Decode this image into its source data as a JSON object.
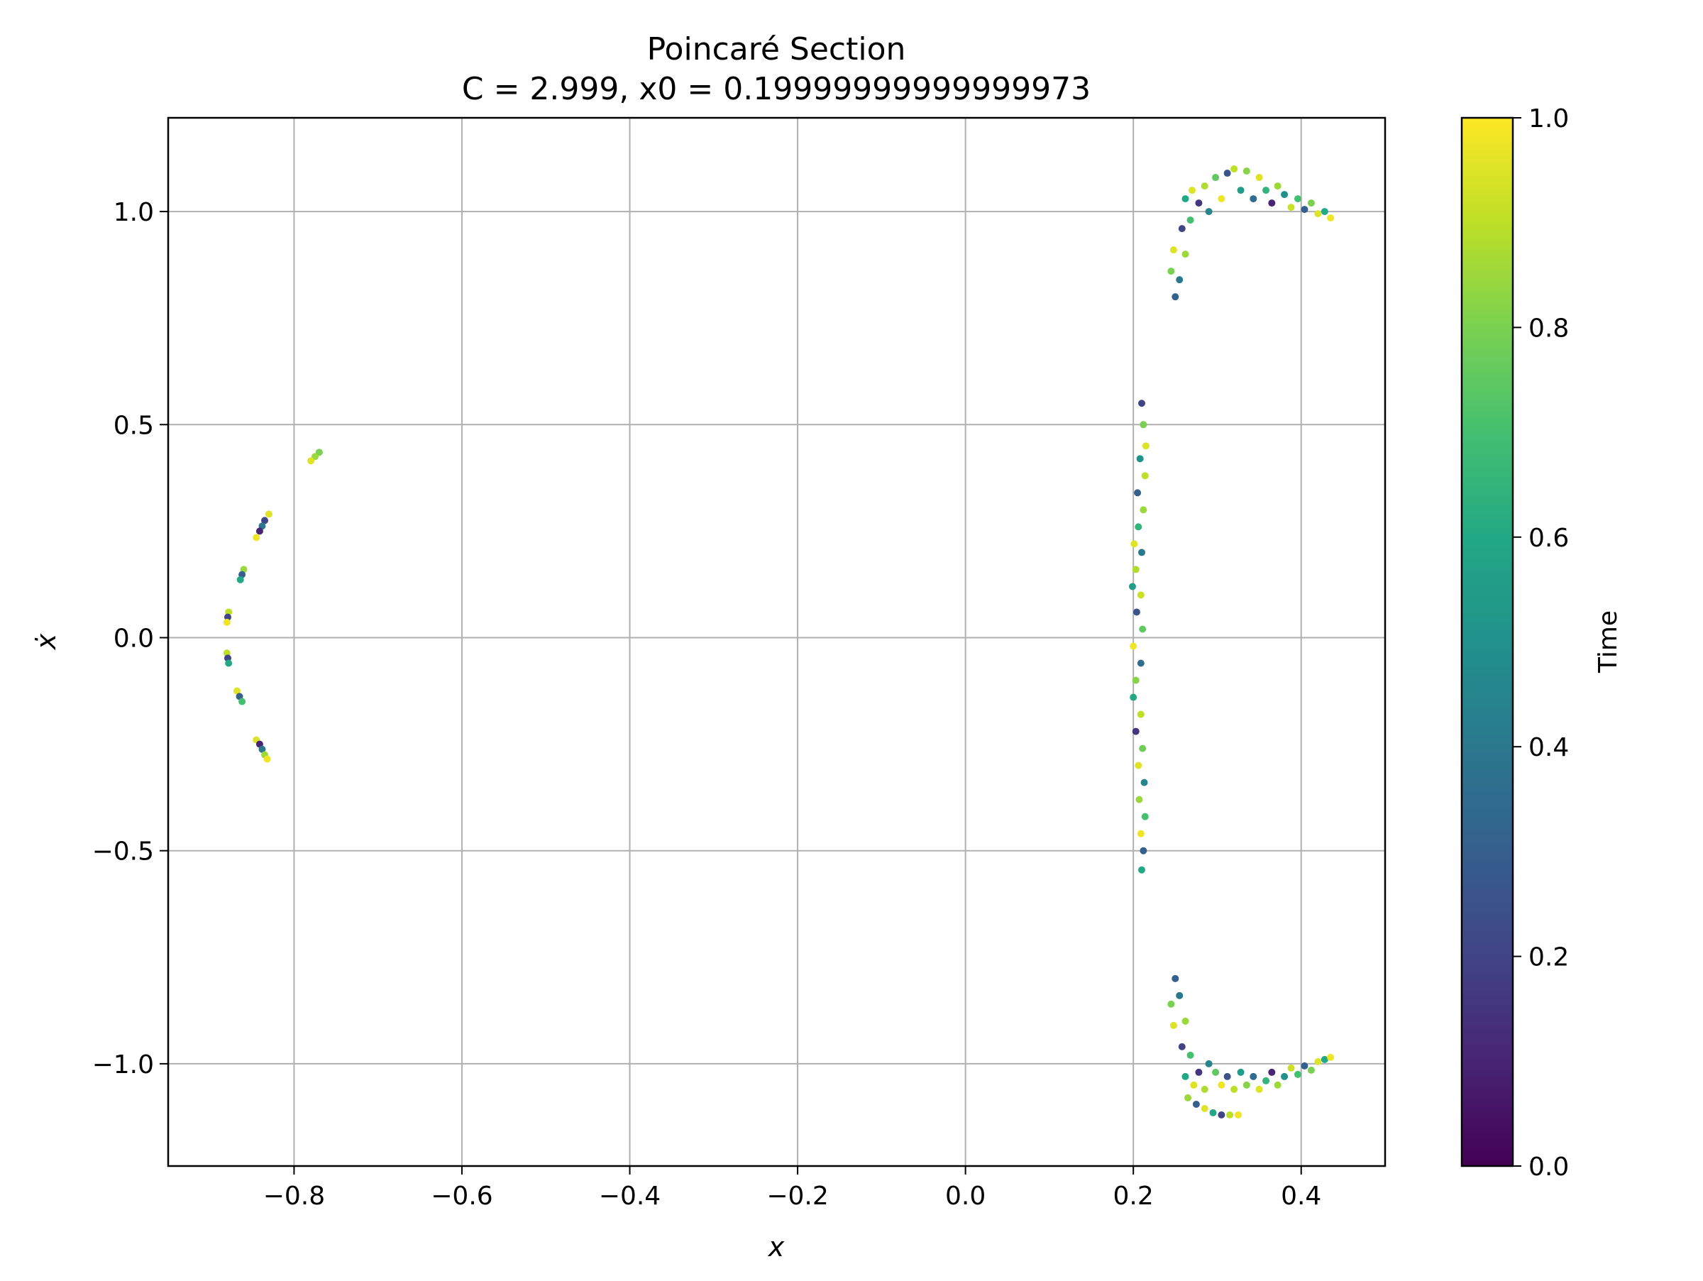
{
  "chart_data": {
    "type": "scatter",
    "title": "Poincaré Section",
    "subtitle": "C = 2.999, x0 = 0.19999999999999973",
    "xlabel": "x",
    "ylabel": "ẋ",
    "xlim": [
      -0.95,
      0.5
    ],
    "ylim": [
      -1.24,
      1.22
    ],
    "xticks": [
      -0.8,
      -0.6,
      -0.4,
      -0.2,
      0.0,
      0.2,
      0.4
    ],
    "xtick_labels": [
      "−0.8",
      "−0.6",
      "−0.4",
      "−0.2",
      "0.0",
      "0.2",
      "0.4"
    ],
    "yticks": [
      -1.0,
      -0.5,
      0.0,
      0.5,
      1.0
    ],
    "ytick_labels": [
      "−1.0",
      "−0.5",
      "0.0",
      "0.5",
      "1.0"
    ],
    "grid": true,
    "colormap": "viridis",
    "colorbar": {
      "label": "Time",
      "range": [
        0.0,
        1.0
      ],
      "ticks": [
        0.0,
        0.2,
        0.4,
        0.6,
        0.8,
        1.0
      ],
      "tick_labels": [
        "0.0",
        "0.2",
        "0.4",
        "0.6",
        "0.8",
        "1.0"
      ]
    },
    "series": [
      {
        "points": [
          {
            "x": -0.77,
            "y": 0.435,
            "t": 0.8
          },
          {
            "x": -0.775,
            "y": 0.425,
            "t": 0.85
          },
          {
            "x": -0.78,
            "y": 0.415,
            "t": 0.95
          },
          {
            "x": -0.83,
            "y": 0.29,
            "t": 0.95
          },
          {
            "x": -0.835,
            "y": 0.275,
            "t": 0.2
          },
          {
            "x": -0.838,
            "y": 0.262,
            "t": 0.4
          },
          {
            "x": -0.841,
            "y": 0.25,
            "t": 0.1
          },
          {
            "x": -0.845,
            "y": 0.235,
            "t": 0.98
          },
          {
            "x": -0.86,
            "y": 0.16,
            "t": 0.85
          },
          {
            "x": -0.862,
            "y": 0.148,
            "t": 0.3
          },
          {
            "x": -0.864,
            "y": 0.136,
            "t": 0.6
          },
          {
            "x": -0.878,
            "y": 0.06,
            "t": 0.9
          },
          {
            "x": -0.879,
            "y": 0.048,
            "t": 0.2
          },
          {
            "x": -0.88,
            "y": 0.036,
            "t": 0.98
          },
          {
            "x": -0.88,
            "y": -0.036,
            "t": 0.9
          },
          {
            "x": -0.879,
            "y": -0.048,
            "t": 0.2
          },
          {
            "x": -0.878,
            "y": -0.06,
            "t": 0.6
          },
          {
            "x": -0.868,
            "y": -0.125,
            "t": 0.95
          },
          {
            "x": -0.865,
            "y": -0.138,
            "t": 0.3
          },
          {
            "x": -0.862,
            "y": -0.15,
            "t": 0.7
          },
          {
            "x": -0.845,
            "y": -0.24,
            "t": 0.95
          },
          {
            "x": -0.841,
            "y": -0.25,
            "t": 0.1
          },
          {
            "x": -0.838,
            "y": -0.262,
            "t": 0.4
          },
          {
            "x": -0.835,
            "y": -0.275,
            "t": 0.85
          },
          {
            "x": -0.832,
            "y": -0.285,
            "t": 0.98
          },
          {
            "x": 0.21,
            "y": 0.55,
            "t": 0.2
          },
          {
            "x": 0.212,
            "y": 0.5,
            "t": 0.8
          },
          {
            "x": 0.215,
            "y": 0.45,
            "t": 0.95
          },
          {
            "x": 0.208,
            "y": 0.42,
            "t": 0.5
          },
          {
            "x": 0.214,
            "y": 0.38,
            "t": 0.9
          },
          {
            "x": 0.205,
            "y": 0.34,
            "t": 0.3
          },
          {
            "x": 0.212,
            "y": 0.3,
            "t": 0.85
          },
          {
            "x": 0.206,
            "y": 0.26,
            "t": 0.65
          },
          {
            "x": 0.201,
            "y": 0.22,
            "t": 0.95
          },
          {
            "x": 0.21,
            "y": 0.2,
            "t": 0.4
          },
          {
            "x": 0.203,
            "y": 0.16,
            "t": 0.88
          },
          {
            "x": 0.199,
            "y": 0.12,
            "t": 0.55
          },
          {
            "x": 0.209,
            "y": 0.1,
            "t": 0.92
          },
          {
            "x": 0.204,
            "y": 0.06,
            "t": 0.25
          },
          {
            "x": 0.211,
            "y": 0.02,
            "t": 0.75
          },
          {
            "x": 0.2,
            "y": -0.02,
            "t": 0.98
          },
          {
            "x": 0.209,
            "y": -0.06,
            "t": 0.35
          },
          {
            "x": 0.203,
            "y": -0.1,
            "t": 0.82
          },
          {
            "x": 0.2,
            "y": -0.14,
            "t": 0.6
          },
          {
            "x": 0.209,
            "y": -0.18,
            "t": 0.9
          },
          {
            "x": 0.203,
            "y": -0.22,
            "t": 0.15
          },
          {
            "x": 0.211,
            "y": -0.26,
            "t": 0.78
          },
          {
            "x": 0.206,
            "y": -0.3,
            "t": 0.95
          },
          {
            "x": 0.213,
            "y": -0.34,
            "t": 0.45
          },
          {
            "x": 0.207,
            "y": -0.38,
            "t": 0.85
          },
          {
            "x": 0.214,
            "y": -0.42,
            "t": 0.7
          },
          {
            "x": 0.209,
            "y": -0.46,
            "t": 0.98
          },
          {
            "x": 0.212,
            "y": -0.5,
            "t": 0.3
          },
          {
            "x": 0.21,
            "y": -0.545,
            "t": 0.6
          },
          {
            "x": 0.25,
            "y": 0.8,
            "t": 0.3
          },
          {
            "x": 0.245,
            "y": 0.86,
            "t": 0.8
          },
          {
            "x": 0.248,
            "y": 0.91,
            "t": 0.95
          },
          {
            "x": 0.255,
            "y": 0.84,
            "t": 0.4
          },
          {
            "x": 0.262,
            "y": 0.9,
            "t": 0.85
          },
          {
            "x": 0.258,
            "y": 0.96,
            "t": 0.2
          },
          {
            "x": 0.268,
            "y": 0.98,
            "t": 0.7
          },
          {
            "x": 0.262,
            "y": 1.03,
            "t": 0.6
          },
          {
            "x": 0.27,
            "y": 1.05,
            "t": 0.95
          },
          {
            "x": 0.278,
            "y": 1.02,
            "t": 0.15
          },
          {
            "x": 0.285,
            "y": 1.06,
            "t": 0.88
          },
          {
            "x": 0.29,
            "y": 1.0,
            "t": 0.45
          },
          {
            "x": 0.298,
            "y": 1.08,
            "t": 0.75
          },
          {
            "x": 0.305,
            "y": 1.03,
            "t": 0.98
          },
          {
            "x": 0.312,
            "y": 1.09,
            "t": 0.25
          },
          {
            "x": 0.32,
            "y": 1.1,
            "t": 0.9
          },
          {
            "x": 0.328,
            "y": 1.05,
            "t": 0.55
          },
          {
            "x": 0.335,
            "y": 1.095,
            "t": 0.82
          },
          {
            "x": 0.343,
            "y": 1.03,
            "t": 0.35
          },
          {
            "x": 0.35,
            "y": 1.08,
            "t": 0.95
          },
          {
            "x": 0.358,
            "y": 1.05,
            "t": 0.65
          },
          {
            "x": 0.365,
            "y": 1.02,
            "t": 0.1
          },
          {
            "x": 0.372,
            "y": 1.06,
            "t": 0.85
          },
          {
            "x": 0.38,
            "y": 1.04,
            "t": 0.5
          },
          {
            "x": 0.388,
            "y": 1.01,
            "t": 0.92
          },
          {
            "x": 0.396,
            "y": 1.03,
            "t": 0.7
          },
          {
            "x": 0.404,
            "y": 1.005,
            "t": 0.3
          },
          {
            "x": 0.412,
            "y": 1.02,
            "t": 0.8
          },
          {
            "x": 0.42,
            "y": 0.995,
            "t": 0.95
          },
          {
            "x": 0.428,
            "y": 1.0,
            "t": 0.6
          },
          {
            "x": 0.435,
            "y": 0.985,
            "t": 0.98
          },
          {
            "x": 0.25,
            "y": -0.8,
            "t": 0.3
          },
          {
            "x": 0.245,
            "y": -0.86,
            "t": 0.8
          },
          {
            "x": 0.248,
            "y": -0.91,
            "t": 0.95
          },
          {
            "x": 0.255,
            "y": -0.84,
            "t": 0.4
          },
          {
            "x": 0.262,
            "y": -0.9,
            "t": 0.85
          },
          {
            "x": 0.258,
            "y": -0.96,
            "t": 0.2
          },
          {
            "x": 0.268,
            "y": -0.98,
            "t": 0.7
          },
          {
            "x": 0.262,
            "y": -1.03,
            "t": 0.6
          },
          {
            "x": 0.272,
            "y": -1.05,
            "t": 0.95
          },
          {
            "x": 0.278,
            "y": -1.02,
            "t": 0.15
          },
          {
            "x": 0.285,
            "y": -1.06,
            "t": 0.88
          },
          {
            "x": 0.29,
            "y": -1.0,
            "t": 0.45
          },
          {
            "x": 0.298,
            "y": -1.02,
            "t": 0.75
          },
          {
            "x": 0.305,
            "y": -1.05,
            "t": 0.98
          },
          {
            "x": 0.312,
            "y": -1.03,
            "t": 0.25
          },
          {
            "x": 0.32,
            "y": -1.06,
            "t": 0.9
          },
          {
            "x": 0.328,
            "y": -1.02,
            "t": 0.55
          },
          {
            "x": 0.335,
            "y": -1.05,
            "t": 0.82
          },
          {
            "x": 0.343,
            "y": -1.03,
            "t": 0.35
          },
          {
            "x": 0.35,
            "y": -1.06,
            "t": 0.95
          },
          {
            "x": 0.358,
            "y": -1.04,
            "t": 0.65
          },
          {
            "x": 0.365,
            "y": -1.02,
            "t": 0.1
          },
          {
            "x": 0.372,
            "y": -1.05,
            "t": 0.85
          },
          {
            "x": 0.38,
            "y": -1.03,
            "t": 0.5
          },
          {
            "x": 0.388,
            "y": -1.01,
            "t": 0.92
          },
          {
            "x": 0.396,
            "y": -1.025,
            "t": 0.7
          },
          {
            "x": 0.404,
            "y": -1.005,
            "t": 0.3
          },
          {
            "x": 0.412,
            "y": -1.015,
            "t": 0.8
          },
          {
            "x": 0.42,
            "y": -0.995,
            "t": 0.95
          },
          {
            "x": 0.428,
            "y": -0.99,
            "t": 0.6
          },
          {
            "x": 0.435,
            "y": -0.985,
            "t": 0.98
          },
          {
            "x": 0.265,
            "y": -1.08,
            "t": 0.85
          },
          {
            "x": 0.275,
            "y": -1.095,
            "t": 0.3
          },
          {
            "x": 0.285,
            "y": -1.105,
            "t": 0.95
          },
          {
            "x": 0.295,
            "y": -1.115,
            "t": 0.6
          },
          {
            "x": 0.305,
            "y": -1.12,
            "t": 0.2
          },
          {
            "x": 0.315,
            "y": -1.12,
            "t": 0.9
          },
          {
            "x": 0.325,
            "y": -1.12,
            "t": 0.98
          }
        ]
      }
    ]
  }
}
